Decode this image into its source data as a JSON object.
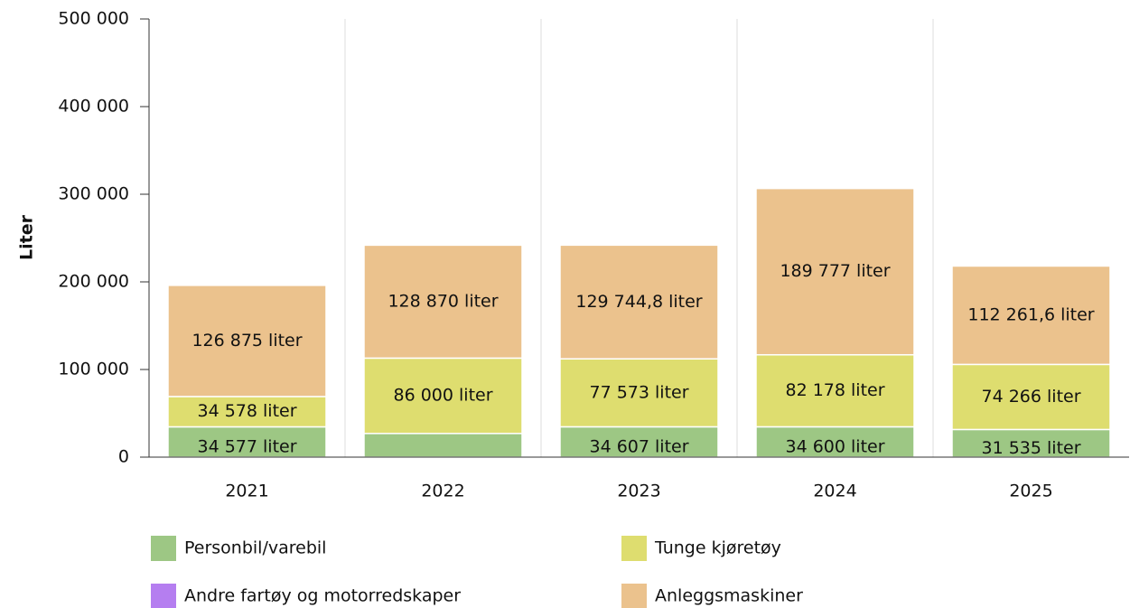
{
  "chart_data": {
    "type": "stacked_bar",
    "y_label": "Liter",
    "categories": [
      "2021",
      "2022",
      "2023",
      "2024",
      "2025"
    ],
    "series": [
      {
        "name": "Personbil/varebil",
        "color": "#9dc784",
        "values": [
          34577,
          27000,
          34607,
          34600,
          31535
        ],
        "value_labels": [
          "34 577 liter",
          null,
          "34 607 liter",
          "34 600 liter",
          "31 535 liter"
        ]
      },
      {
        "name": "Tunge kjøretøy",
        "color": "#dedd6f",
        "values": [
          34578,
          86000,
          77573,
          82178,
          74266
        ],
        "value_labels": [
          "34 578 liter",
          "86 000 liter",
          "77 573 liter",
          "82 178 liter",
          "74 266 liter"
        ]
      },
      {
        "name": "Andre fartøy og motorredskaper",
        "color": "#b57ef0",
        "values": [
          0,
          0,
          0,
          0,
          0
        ],
        "value_labels": [
          null,
          null,
          null,
          null,
          null
        ]
      },
      {
        "name": "Anleggsmaskiner",
        "color": "#ebc28d",
        "values": [
          126875,
          128870,
          129744.8,
          189777,
          112261.6
        ],
        "value_labels": [
          "126 875 liter",
          "128 870 liter",
          "129 744,8 liter",
          "189 777 liter",
          "112 261,6 liter"
        ]
      }
    ],
    "ylim": [
      0,
      500000
    ],
    "yticks": [
      0,
      {
        "value": 100000,
        "label": "100 000"
      },
      {
        "value": 200000,
        "label": "200 000"
      },
      {
        "value": 300000,
        "label": "300 000"
      },
      {
        "value": 400000,
        "label": "400 000"
      },
      {
        "value": 500000,
        "label": "500 000"
      }
    ],
    "grid": "x"
  }
}
